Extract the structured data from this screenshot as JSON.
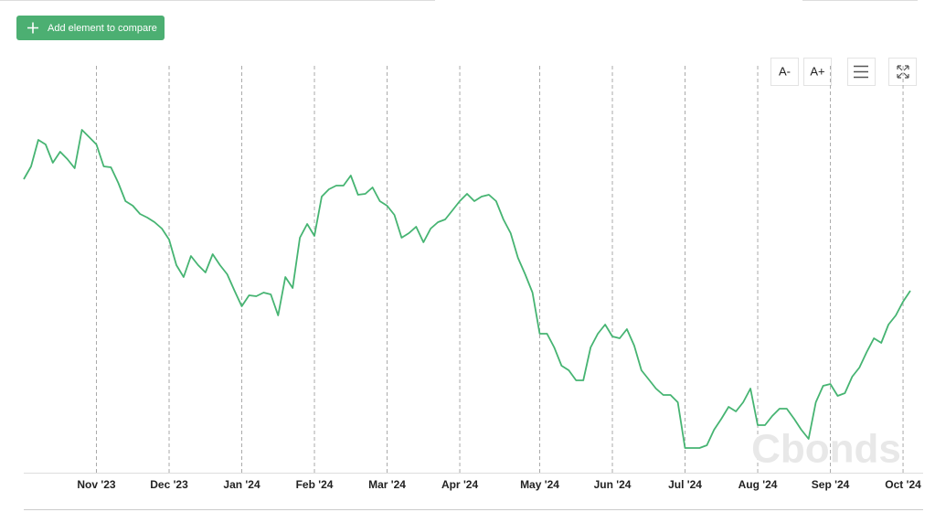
{
  "toolbar": {
    "add_button": "Add element to compare",
    "font_decrease": "A-",
    "font_increase": "A+"
  },
  "chart_data": {
    "type": "line",
    "watermark": "Cbonds",
    "x": [
      0,
      1,
      2,
      3,
      4,
      5,
      6,
      7,
      8,
      9,
      10,
      11,
      12,
      13,
      14,
      15,
      16,
      17,
      18,
      19,
      20,
      21,
      22,
      23,
      24,
      25,
      26,
      27,
      28,
      29,
      30,
      31,
      32,
      33,
      34,
      35,
      36,
      37,
      38,
      39,
      40,
      41,
      42,
      43,
      44,
      45,
      46,
      47,
      48,
      49,
      50,
      51,
      52,
      53,
      54,
      55,
      56,
      57,
      58,
      59,
      60,
      61,
      62,
      63,
      64,
      65,
      66,
      67,
      68,
      69,
      70,
      71,
      72,
      73,
      74,
      75,
      76,
      77,
      78,
      79,
      80,
      81,
      82,
      83,
      84,
      85,
      86,
      87,
      88,
      89,
      90,
      91,
      92,
      93,
      94,
      95,
      96,
      97,
      98,
      99,
      100,
      101,
      102,
      103,
      104,
      105,
      106,
      107,
      108,
      109,
      110,
      111,
      112,
      113,
      114,
      115,
      116,
      117,
      118,
      119,
      120,
      121,
      122
    ],
    "series": [
      {
        "color": "#46b472",
        "values": [
          324,
          338,
          367,
          362,
          342,
          354,
          346,
          336,
          378,
          370,
          362,
          338,
          337,
          320,
          300,
          295,
          286,
          282,
          277,
          270,
          258,
          230,
          217,
          240,
          230,
          222,
          242,
          230,
          220,
          202,
          185,
          197,
          196,
          200,
          198,
          175,
          217,
          205,
          260,
          275,
          262,
          305,
          313,
          317,
          317,
          328,
          307,
          308,
          315,
          300,
          295,
          285,
          260,
          265,
          272,
          255,
          270,
          277,
          280,
          290,
          300,
          308,
          300,
          305,
          307,
          300,
          280,
          265,
          238,
          220,
          200,
          155,
          155,
          140,
          120,
          115,
          104,
          104,
          140,
          155,
          165,
          152,
          150,
          160,
          142,
          115,
          105,
          95,
          88,
          88,
          80,
          30,
          30,
          30,
          33,
          50,
          62,
          75,
          70,
          80,
          95,
          55,
          55,
          65,
          73,
          73,
          62,
          50,
          40,
          80,
          98,
          100,
          87,
          90,
          108,
          118,
          135,
          150,
          145,
          165,
          175,
          190,
          202
        ]
      }
    ],
    "xlim": [
      0,
      122
    ],
    "ylim": [
      0,
      420
    ],
    "xticks": [
      {
        "value": 10,
        "label": "Nov '23"
      },
      {
        "value": 20,
        "label": "Dec '23"
      },
      {
        "value": 30,
        "label": "Jan '24"
      },
      {
        "value": 40,
        "label": "Feb '24"
      },
      {
        "value": 50,
        "label": "Mar '24"
      },
      {
        "value": 60,
        "label": "Apr '24"
      },
      {
        "value": 71,
        "label": "May '24"
      },
      {
        "value": 81,
        "label": "Jun '24"
      },
      {
        "value": 91,
        "label": "Jul '24"
      },
      {
        "value": 101,
        "label": "Aug '24"
      },
      {
        "value": 111,
        "label": "Sep '24"
      },
      {
        "value": 121,
        "label": "Oct '24"
      }
    ],
    "grid": true
  }
}
